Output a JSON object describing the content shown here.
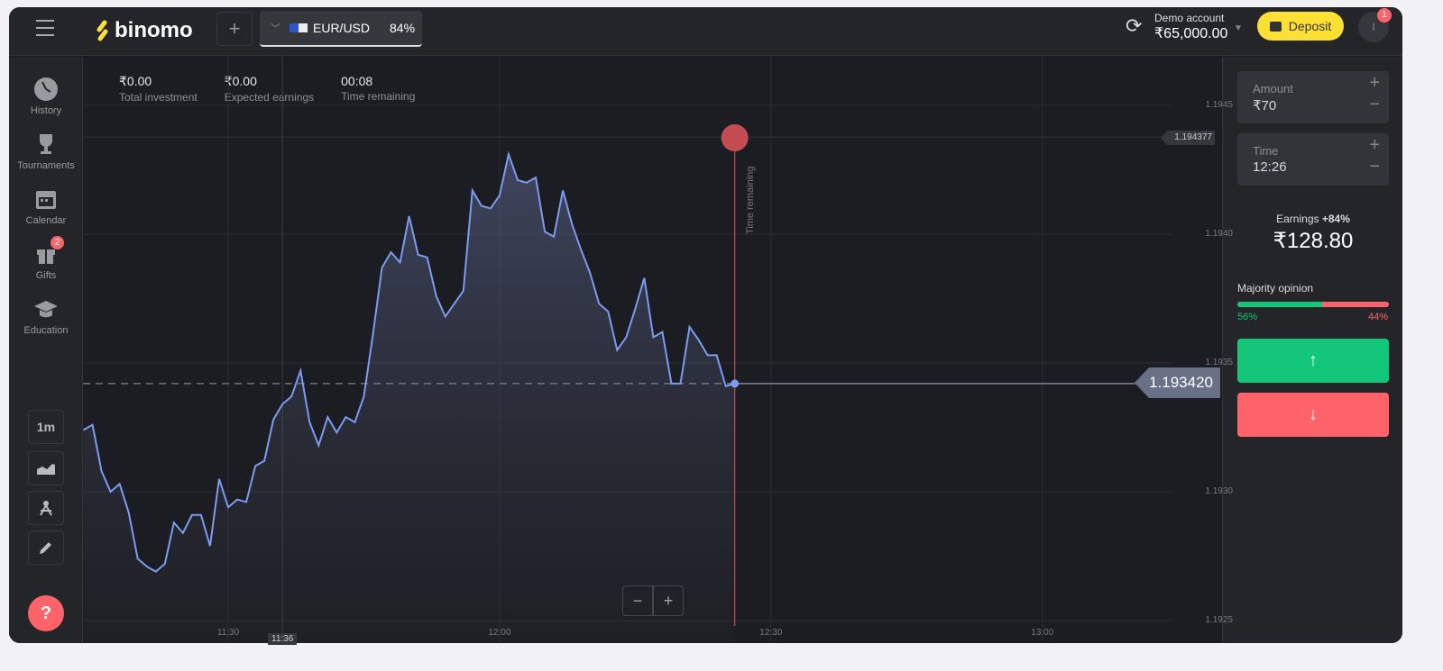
{
  "header": {
    "logo": "binomo",
    "add_label": "+",
    "asset": "EUR/USD",
    "payout": "84%",
    "account_type": "Demo account",
    "balance": "₹65,000.00",
    "deposit_label": "Deposit",
    "notifications": "1",
    "avatar_initial": "I"
  },
  "sidebar": {
    "items": [
      {
        "label": "History",
        "icon": "clock-icon"
      },
      {
        "label": "Tournaments",
        "icon": "trophy-icon"
      },
      {
        "label": "Calendar",
        "icon": "calendar-icon"
      },
      {
        "label": "Gifts",
        "icon": "gift-icon",
        "badge": "2"
      },
      {
        "label": "Education",
        "icon": "graduation-cap-icon"
      }
    ],
    "timeframe": "1m",
    "help": "?"
  },
  "stats": [
    {
      "value": "₹0.00",
      "label": "Total investment"
    },
    {
      "value": "₹0.00",
      "label": "Expected earnings"
    },
    {
      "value": "00:08",
      "label": "Time remaining"
    }
  ],
  "trade": {
    "amount_label": "Amount",
    "amount": "₹70",
    "time_label": "Time",
    "time": "12:26",
    "earnings_label": "Earnings",
    "earnings_pct": "+84%",
    "earnings": "₹128.80",
    "majority_label": "Majority opinion",
    "up_pct": "56%",
    "down_pct": "44%",
    "up_share": 56,
    "colors": {
      "up": "#14c67a",
      "down": "#ff636a",
      "deposit": "#fde034",
      "line": "#7b9cf0"
    }
  },
  "chart_data": {
    "type": "area",
    "asset": "EUR/USD",
    "ylim": [
      1.1924,
      1.1947
    ],
    "xlim": [
      "11:14",
      "13:20"
    ],
    "yticks": [
      "1.1945",
      "1.1940",
      "1.1935",
      "1.1930",
      "1.1925"
    ],
    "xticks": [
      "11:30",
      "12:00",
      "12:30",
      "13:00"
    ],
    "current_time_tick": "11:36",
    "expiry_label": "Time remaining",
    "expiry_time": "12:26",
    "current_price": "1.193420",
    "marker_price": "1.194377",
    "x": [
      "11:14",
      "11:15",
      "11:16",
      "11:17",
      "11:18",
      "11:19",
      "11:20",
      "11:21",
      "11:22",
      "11:23",
      "11:24",
      "11:25",
      "11:26",
      "11:27",
      "11:28",
      "11:29",
      "11:30",
      "11:31",
      "11:32",
      "11:33",
      "11:34",
      "11:35",
      "11:36",
      "11:37",
      "11:38",
      "11:39",
      "11:40",
      "11:41",
      "11:42",
      "11:43",
      "11:44",
      "11:45",
      "11:46",
      "11:47",
      "11:48",
      "11:49",
      "11:50",
      "11:51",
      "11:52",
      "11:53",
      "11:54",
      "11:55",
      "11:56",
      "11:57",
      "11:58",
      "11:59",
      "12:00",
      "12:01",
      "12:02",
      "12:03",
      "12:04",
      "12:05",
      "12:06",
      "12:07",
      "12:08",
      "12:09",
      "12:10",
      "12:11",
      "12:12",
      "12:13",
      "12:14",
      "12:15",
      "12:16",
      "12:17",
      "12:18",
      "12:19",
      "12:20",
      "12:21",
      "12:22",
      "12:23",
      "12:24",
      "12:25",
      "12:26"
    ],
    "y": [
      1.19324,
      1.19326,
      1.19308,
      1.193,
      1.19303,
      1.19292,
      1.19274,
      1.19271,
      1.19269,
      1.19272,
      1.19288,
      1.19284,
      1.19291,
      1.19291,
      1.19279,
      1.19305,
      1.19294,
      1.19297,
      1.19296,
      1.1931,
      1.19312,
      1.19328,
      1.19334,
      1.19337,
      1.19347,
      1.19327,
      1.19318,
      1.19329,
      1.19323,
      1.19329,
      1.19327,
      1.19337,
      1.19361,
      1.19387,
      1.19393,
      1.19389,
      1.19407,
      1.19392,
      1.19391,
      1.19376,
      1.19368,
      1.19373,
      1.19378,
      1.19417,
      1.19411,
      1.1941,
      1.19415,
      1.19431,
      1.19421,
      1.1942,
      1.19422,
      1.19401,
      1.19399,
      1.19417,
      1.19404,
      1.19394,
      1.19385,
      1.19373,
      1.1937,
      1.19355,
      1.1936,
      1.19371,
      1.19383,
      1.1936,
      1.19362,
      1.19342,
      1.19342,
      1.19364,
      1.19359,
      1.19353,
      1.19353,
      1.19341,
      1.19342
    ]
  },
  "zoom": {
    "out": "−",
    "in": "+"
  }
}
